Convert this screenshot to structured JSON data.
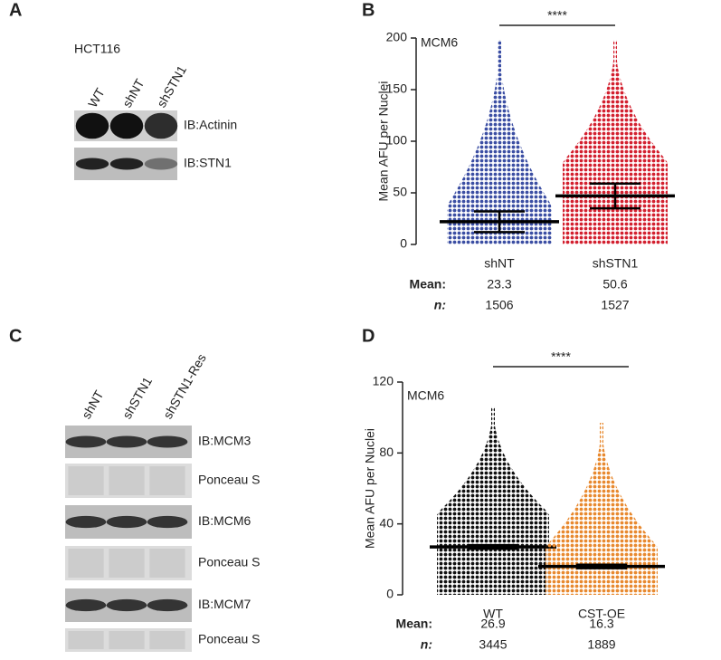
{
  "blots": [
    {
      "panel": "A",
      "cell_line": "HCT116",
      "lanes": [
        "WT",
        "shNT",
        "shSTN1"
      ],
      "rows": [
        "IB:Actinin",
        "IB:STN1"
      ]
    },
    {
      "panel": "C",
      "lanes": [
        "shNT",
        "shSTN1",
        "shSTN1-Res"
      ],
      "rows": [
        "IB:MCM3",
        "Ponceau S",
        "IB:MCM6",
        "Ponceau S",
        "IB:MCM7",
        "Ponceau S"
      ]
    }
  ],
  "chart_data": [
    {
      "type": "dot",
      "panel": "B",
      "title": "MCM6",
      "ylabel": "Mean AFU per Nuclei",
      "categories": [
        "shNT",
        "shSTN1"
      ],
      "colors": [
        "#3b4ea3",
        "#d3202f"
      ],
      "median": [
        22,
        47
      ],
      "q1": [
        12,
        35
      ],
      "q3": [
        32,
        59
      ],
      "max": [
        198,
        198
      ],
      "ylim": [
        0,
        200
      ],
      "yticks": [
        0,
        50,
        100,
        150,
        200
      ],
      "significance": "****",
      "mean_label": "Mean:",
      "means": [
        23.3,
        50.6
      ],
      "n_label": "n:",
      "n": [
        1506,
        1527
      ]
    },
    {
      "type": "dot",
      "panel": "D",
      "title": "MCM6",
      "ylabel": "Mean AFU per Nuclei",
      "categories": [
        "WT",
        "CST-OE"
      ],
      "colors": [
        "#111111",
        "#e8892f"
      ],
      "median": [
        27,
        16
      ],
      "q1": [
        26,
        15
      ],
      "q3": [
        28,
        17
      ],
      "max": [
        106,
        97
      ],
      "ylim": [
        0,
        120
      ],
      "yticks": [
        0,
        40,
        80,
        120
      ],
      "significance": "****",
      "mean_label": "Mean:",
      "means": [
        26.9,
        16.3
      ],
      "n_label": "n:",
      "n": [
        3445,
        1889
      ]
    }
  ]
}
